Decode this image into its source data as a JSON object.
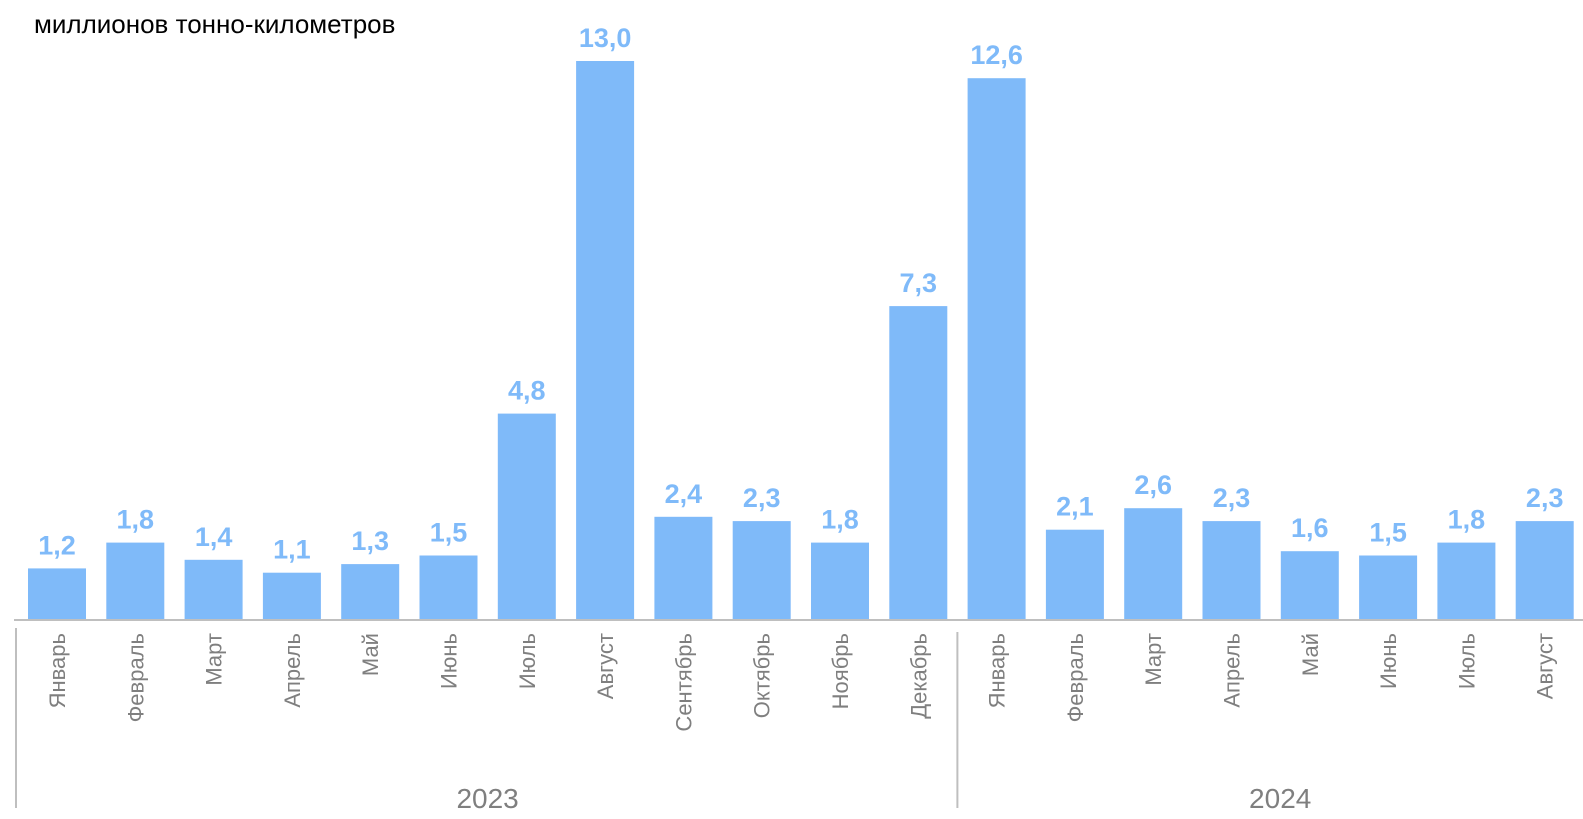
{
  "chart_data": {
    "type": "bar",
    "title": "",
    "unit_label": "миллионов тонно-километров",
    "xlabel": "",
    "ylabel": "",
    "ylim": [
      0,
      13.0
    ],
    "grid": false,
    "legend": "none",
    "bar_color": "#7fbaf9",
    "label_color": "#7fbaf9",
    "axis_color": "#bfbfbf",
    "categories": [
      "Январь",
      "Февраль",
      "Март",
      "Апрель",
      "Май",
      "Июнь",
      "Июль",
      "Август",
      "Сентябрь",
      "Октябрь",
      "Ноябрь",
      "Декабрь",
      "Январь",
      "Февраль",
      "Март",
      "Апрель",
      "Май",
      "Июнь",
      "Июль",
      "Август"
    ],
    "values": [
      1.2,
      1.8,
      1.4,
      1.1,
      1.3,
      1.5,
      4.8,
      13.0,
      2.4,
      2.3,
      1.8,
      7.3,
      12.6,
      2.1,
      2.6,
      2.3,
      1.6,
      1.5,
      1.8,
      2.3
    ],
    "value_labels": [
      "1,2",
      "1,8",
      "1,4",
      "1,1",
      "1,3",
      "1,5",
      "4,8",
      "13,0",
      "2,4",
      "2,3",
      "1,8",
      "7,3",
      "12,6",
      "2,1",
      "2,6",
      "2,3",
      "1,6",
      "1,5",
      "1,8",
      "2,3"
    ],
    "groups": [
      {
        "label": "2023",
        "count": 12
      },
      {
        "label": "2024",
        "count": 8
      }
    ]
  }
}
